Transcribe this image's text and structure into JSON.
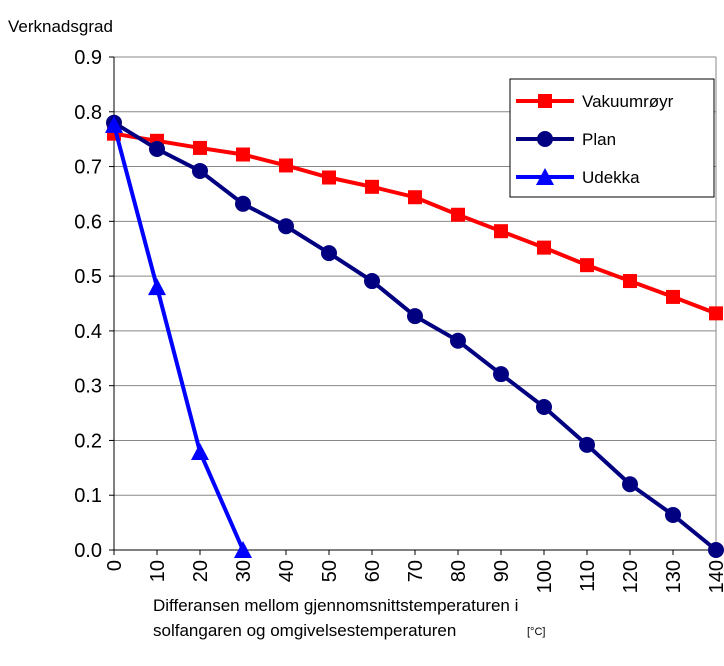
{
  "chart_data": {
    "type": "line",
    "ylabel": "Verknadsgrad",
    "xlabel": [
      "Differansen mellom gjennomsnittstemperaturen i",
      "solfangaren og omgivelsestemperaturen"
    ],
    "xunit": "[°C]",
    "x": [
      0,
      10,
      20,
      30,
      40,
      50,
      60,
      70,
      80,
      90,
      100,
      110,
      120,
      130,
      140
    ],
    "series": [
      {
        "name": "Vakuumrøyr",
        "color": "#ff0000",
        "marker": "square",
        "values": [
          0.76,
          0.747,
          0.734,
          0.722,
          0.702,
          0.68,
          0.663,
          0.644,
          0.612,
          0.582,
          0.552,
          0.52,
          0.491,
          0.462,
          0.432
        ]
      },
      {
        "name": "Plan",
        "color": "#000080",
        "marker": "circle",
        "values": [
          0.78,
          0.732,
          0.692,
          0.632,
          0.591,
          0.542,
          0.491,
          0.427,
          0.382,
          0.321,
          0.261,
          0.192,
          0.12,
          0.064,
          0.0
        ]
      },
      {
        "name": "Udekka",
        "color": "#0000ff",
        "marker": "triangle",
        "values": [
          0.776,
          0.48,
          0.179,
          0.0,
          null,
          null,
          null,
          null,
          null,
          null,
          null,
          null,
          null,
          null,
          null
        ]
      }
    ],
    "xlim": [
      0,
      140
    ],
    "xticks": [
      0,
      10,
      20,
      30,
      40,
      50,
      60,
      70,
      80,
      90,
      100,
      110,
      120,
      130,
      140
    ],
    "ylim": [
      0,
      0.9
    ],
    "yticks": [
      {
        "value": 0,
        "label": "0.0"
      },
      0.1,
      0.2,
      0.3,
      0.4,
      0.5,
      0.6,
      0.7,
      0.8,
      0.9
    ],
    "grid": true,
    "legend": "top-right"
  }
}
